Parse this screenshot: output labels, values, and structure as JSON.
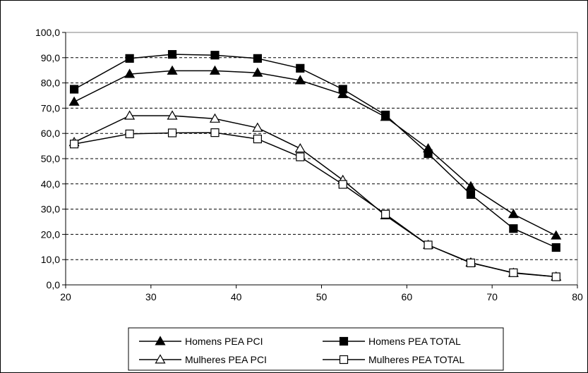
{
  "chart_data": {
    "type": "line",
    "title": "",
    "xlabel": "",
    "ylabel": "",
    "xlim": [
      20,
      80
    ],
    "ylim": [
      0,
      100
    ],
    "x_ticks": [
      "20",
      "30",
      "40",
      "50",
      "60",
      "70",
      "80"
    ],
    "y_ticks": [
      "0,0",
      "10,0",
      "20,0",
      "30,0",
      "40,0",
      "50,0",
      "60,0",
      "70,0",
      "80,0",
      "90,0",
      "100,0"
    ],
    "grid": "horizontal dashed",
    "legend_position": "bottom",
    "x": [
      21,
      27.5,
      32.5,
      37.5,
      42.5,
      47.5,
      52.5,
      57.5,
      62.5,
      67.5,
      72.5,
      77.5
    ],
    "series": [
      {
        "name": "Homens PEA PCI",
        "marker": "filled-triangle",
        "values": [
          72.5,
          83.5,
          84.8,
          84.8,
          84.0,
          81.0,
          75.5,
          66.5,
          54.0,
          39.0,
          28.0,
          19.5
        ]
      },
      {
        "name": "Homens PEA TOTAL",
        "marker": "filled-square",
        "values": [
          77.5,
          89.7,
          91.3,
          91.0,
          89.7,
          85.8,
          77.5,
          67.3,
          52.0,
          35.8,
          22.3,
          14.8
        ]
      },
      {
        "name": "Mulheres PEA PCI",
        "marker": "open-triangle",
        "values": [
          56.5,
          67.0,
          67.0,
          65.8,
          62.2,
          54.0,
          41.5,
          27.5,
          15.8,
          8.8,
          4.7,
          3.2
        ]
      },
      {
        "name": "Mulheres PEA TOTAL",
        "marker": "open-square",
        "values": [
          55.8,
          59.8,
          60.2,
          60.3,
          57.8,
          50.7,
          39.8,
          28.0,
          15.8,
          8.7,
          4.8,
          3.2
        ]
      }
    ]
  }
}
